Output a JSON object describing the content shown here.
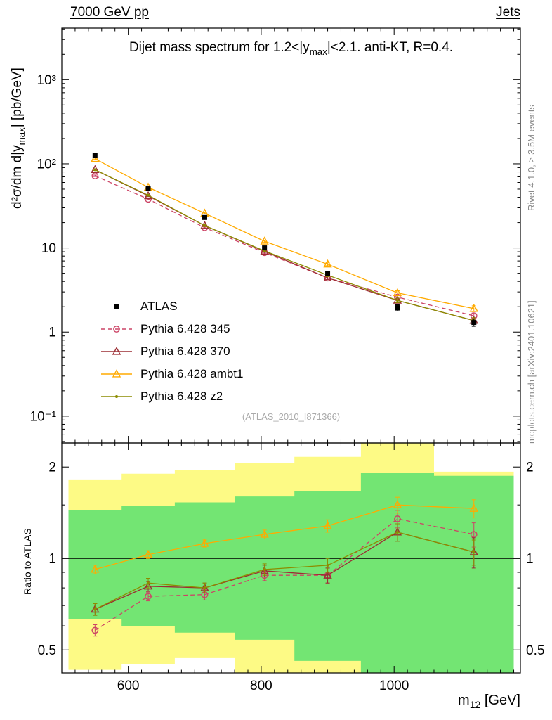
{
  "header": {
    "left": "7000 GeV pp",
    "right": "Jets"
  },
  "title": {
    "pre": "Dijet mass spectrum for 1.2<|y",
    "sub": "max",
    "post": "|<2.1.  anti-KT, R=0.4."
  },
  "axis_labels": {
    "y_main": {
      "pre": "d²σ/dm d|y",
      "sub": "max",
      "post": "| [pb/GeV]"
    },
    "y_ratio": "Ratio to ATLAS",
    "x": {
      "pre": "m",
      "sub": "12",
      "post": " [GeV]"
    }
  },
  "watermark": "(ATLAS_2010_I871366)",
  "side_notes": {
    "top": "Rivet 4.1.0, ≥ 3.5M events",
    "bottom": "mcplots.cern.ch [arXiv:2401.10621]"
  },
  "legend": {
    "items": [
      {
        "label": "ATLAS"
      },
      {
        "label": "Pythia 6.428 345"
      },
      {
        "label": "Pythia 6.428 370"
      },
      {
        "label": "Pythia 6.428 ambt1"
      },
      {
        "label": "Pythia 6.428 z2"
      }
    ]
  },
  "chart_data": {
    "type": "line",
    "title": "Dijet mass spectrum for 1.2<|y_max|<2.1. anti-KT, R=0.4.",
    "xlabel": "m_12 [GeV]",
    "xlim": [
      500,
      1190
    ],
    "x_ticks": [
      600,
      800,
      1000
    ],
    "x_minor_step": 20,
    "x_edges": [
      510,
      590,
      670,
      760,
      850,
      950,
      1060,
      1180
    ],
    "x": [
      550,
      630,
      715,
      805,
      900,
      1005,
      1120
    ],
    "main": {
      "yscale": "log",
      "ylabel": "d²σ/dm d|y_max| [pb/GeV]",
      "ylim": [
        0.048,
        4100
      ],
      "y_ticks": [
        0.1,
        1,
        10,
        100,
        1000
      ],
      "y_tick_labels": [
        "10⁻¹",
        "1",
        "10",
        "10²",
        "10³"
      ]
    },
    "ratio": {
      "yscale": "log",
      "ylabel": "Ratio to ATLAS",
      "ylim": [
        0.42,
        2.4
      ],
      "ref_line": 1,
      "y_ticks": [
        0.5,
        1,
        2
      ],
      "y_tick_labels": [
        "0.5",
        "1",
        "2"
      ],
      "y_minor_ticks": [
        0.6,
        0.7,
        0.8,
        0.9,
        1.5
      ],
      "bands": [
        {
          "name": "outer-uncertainty-band",
          "color": "#fdfa85",
          "lo": [
            0.43,
            0.45,
            0.47,
            0.4,
            0.3,
            0.3,
            0.3
          ],
          "hi": [
            1.82,
            1.9,
            1.96,
            2.06,
            2.16,
            2.4,
            1.93
          ]
        },
        {
          "name": "inner-uncertainty-band",
          "color": "#73e573",
          "lo": [
            0.63,
            0.6,
            0.57,
            0.54,
            0.46,
            0.3,
            0.3
          ],
          "hi": [
            1.44,
            1.49,
            1.53,
            1.6,
            1.67,
            1.91,
            1.87
          ]
        }
      ]
    },
    "series": [
      {
        "name": "ATLAS",
        "color": "#000000",
        "line": "none",
        "marker": "square-filled",
        "main_values": [
          125,
          51,
          23,
          10,
          5.0,
          1.95,
          1.3
        ],
        "main_err_rel": [
          0.04,
          0.04,
          0.04,
          0.05,
          0.06,
          0.08,
          0.1
        ],
        "ratio_values": null,
        "ratio_err": null
      },
      {
        "name": "Pythia 6.428 345",
        "color": "#cc4466",
        "line": "dashed",
        "marker": "circle-open",
        "main_values": [
          72,
          38,
          17.4,
          8.8,
          4.4,
          2.6,
          1.56
        ],
        "main_err_rel": [
          0.02,
          0.02,
          0.02,
          0.03,
          0.04,
          0.06,
          0.08
        ],
        "ratio_values": [
          0.58,
          0.75,
          0.76,
          0.88,
          0.88,
          1.35,
          1.2
        ],
        "ratio_err": [
          0.025,
          0.025,
          0.03,
          0.035,
          0.05,
          0.09,
          0.11
        ]
      },
      {
        "name": "Pythia 6.428 370",
        "color": "#9c2d33",
        "line": "solid",
        "marker": "triangle-open",
        "main_values": [
          85,
          41.5,
          18.4,
          9.1,
          4.4,
          2.38,
          1.37
        ],
        "main_err_rel": [
          0.02,
          0.02,
          0.02,
          0.03,
          0.04,
          0.06,
          0.08
        ],
        "ratio_values": [
          0.68,
          0.81,
          0.8,
          0.91,
          0.88,
          1.22,
          1.05
        ],
        "ratio_err": [
          0.03,
          0.03,
          0.03,
          0.04,
          0.05,
          0.08,
          0.12
        ]
      },
      {
        "name": "Pythia 6.428 ambt1",
        "color": "#ffaa00",
        "line": "solid",
        "marker": "triangle-open",
        "main_values": [
          115,
          52.5,
          25.8,
          12.0,
          6.4,
          2.92,
          1.9
        ],
        "main_err_rel": [
          0.02,
          0.02,
          0.02,
          0.03,
          0.04,
          0.06,
          0.08
        ],
        "ratio_values": [
          0.92,
          1.03,
          1.12,
          1.2,
          1.28,
          1.5,
          1.46
        ],
        "ratio_err": [
          0.03,
          0.03,
          0.03,
          0.04,
          0.06,
          0.09,
          0.1
        ]
      },
      {
        "name": "Pythia 6.428 z2",
        "color": "#8c8c00",
        "line": "solid",
        "marker": "dot",
        "main_values": [
          85,
          42.3,
          18.4,
          9.2,
          4.75,
          2.38,
          1.37
        ],
        "main_err_rel": [
          0.02,
          0.02,
          0.02,
          0.03,
          0.04,
          0.06,
          0.08
        ],
        "ratio_values": [
          0.68,
          0.83,
          0.8,
          0.92,
          0.95,
          1.22,
          1.05
        ],
        "ratio_err": [
          0.03,
          0.03,
          0.03,
          0.04,
          0.05,
          0.08,
          0.1
        ]
      }
    ]
  }
}
